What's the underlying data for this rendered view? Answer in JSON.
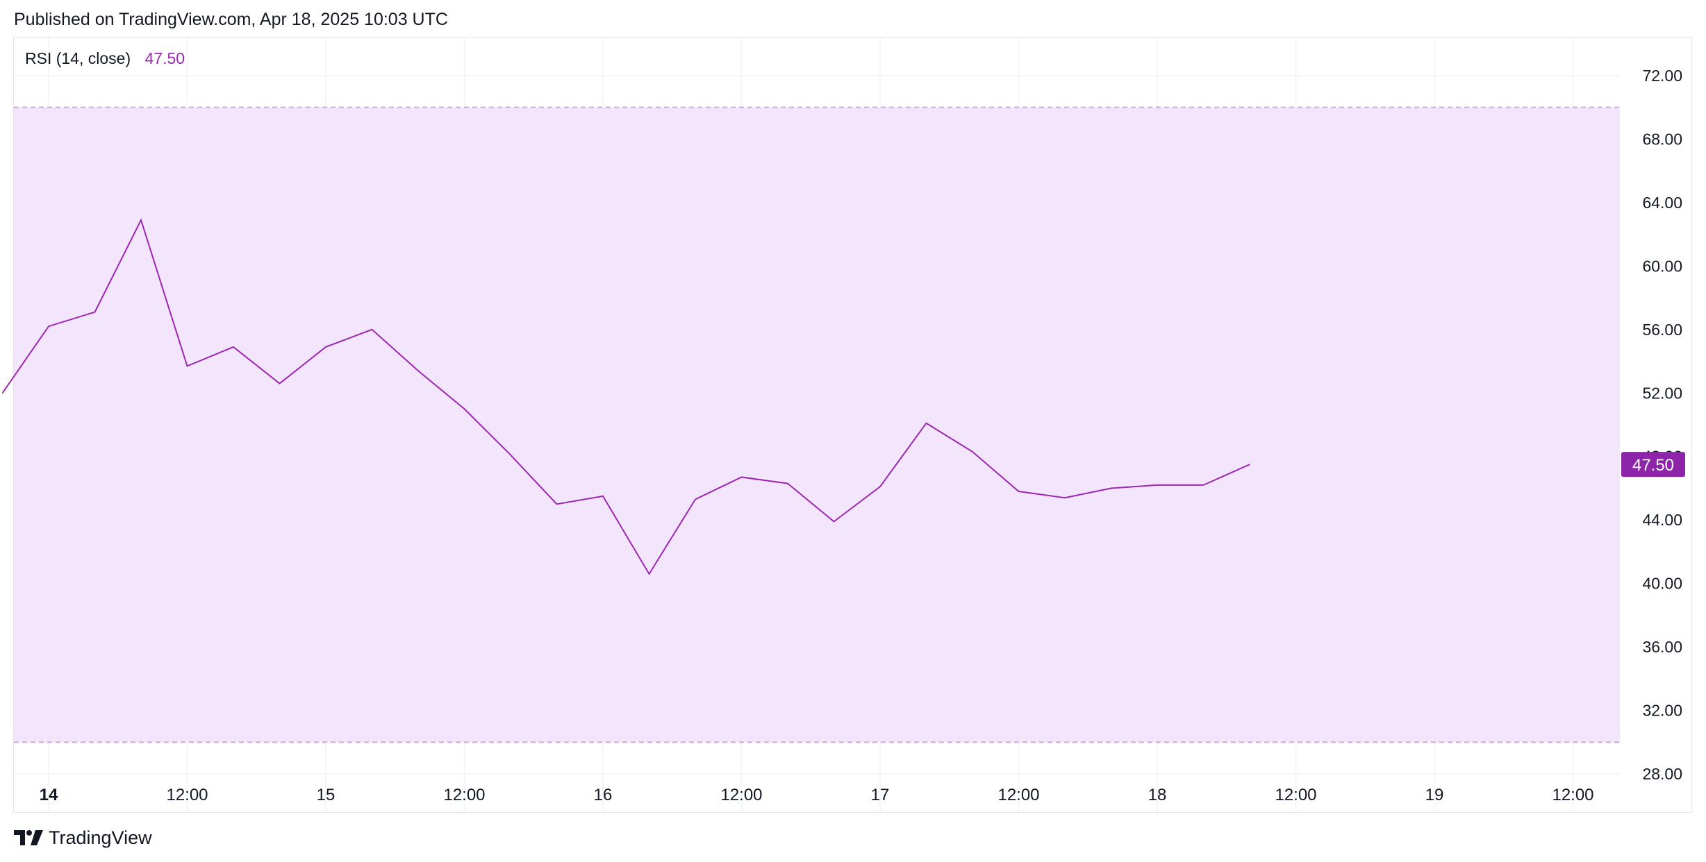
{
  "header": {
    "published": "Published on TradingView.com, Apr 18, 2025 10:03 UTC"
  },
  "legend": {
    "name": "RSI (14, close)",
    "value": "47.50"
  },
  "brand": {
    "name": "TradingView",
    "icon": "tradingview-logo-icon"
  },
  "colors": {
    "line": "#9c27b0",
    "band_fill": "#f3e5fc",
    "band_border": "#c9a7d9",
    "grid": "#f0f3fa",
    "badge": "#8e24aa"
  },
  "chart_data": {
    "type": "line",
    "title": "RSI (14, close)",
    "ylim": [
      25.6,
      74.4
    ],
    "y_ticks": [
      "28.00",
      "32.00",
      "36.00",
      "40.00",
      "44.00",
      "48.00",
      "52.00",
      "56.00",
      "60.00",
      "64.00",
      "68.00",
      "72.00"
    ],
    "x_ticks": [
      "14",
      "12:00",
      "15",
      "12:00",
      "16",
      "12:00",
      "17",
      "12:00",
      "18",
      "12:00",
      "19",
      "12:00"
    ],
    "bands": {
      "upper": 70,
      "lower": 30
    },
    "last_value": "47.50",
    "series": [
      {
        "x": [
          "Apr 13 20:00",
          "Apr 14 00:00",
          "Apr 14 04:00",
          "Apr 14 08:00",
          "Apr 14 12:00",
          "Apr 14 16:00",
          "Apr 14 20:00",
          "Apr 15 00:00",
          "Apr 15 04:00",
          "Apr 15 08:00",
          "Apr 15 12:00",
          "Apr 15 16:00",
          "Apr 15 20:00",
          "Apr 16 00:00",
          "Apr 16 04:00",
          "Apr 16 08:00",
          "Apr 16 12:00",
          "Apr 16 16:00",
          "Apr 16 20:00",
          "Apr 17 00:00",
          "Apr 17 04:00",
          "Apr 17 08:00",
          "Apr 17 12:00",
          "Apr 17 16:00",
          "Apr 17 20:00",
          "Apr 18 00:00",
          "Apr 18 04:00",
          "Apr 18 08:00"
        ],
        "values": [
          52.0,
          56.2,
          57.1,
          62.9,
          53.7,
          54.9,
          52.6,
          54.9,
          56.0,
          53.4,
          51.0,
          48.1,
          45.0,
          45.5,
          40.6,
          45.3,
          46.7,
          46.3,
          43.9,
          46.1,
          50.1,
          48.3,
          45.8,
          45.4,
          46.0,
          46.2,
          46.2,
          47.5
        ]
      }
    ]
  }
}
